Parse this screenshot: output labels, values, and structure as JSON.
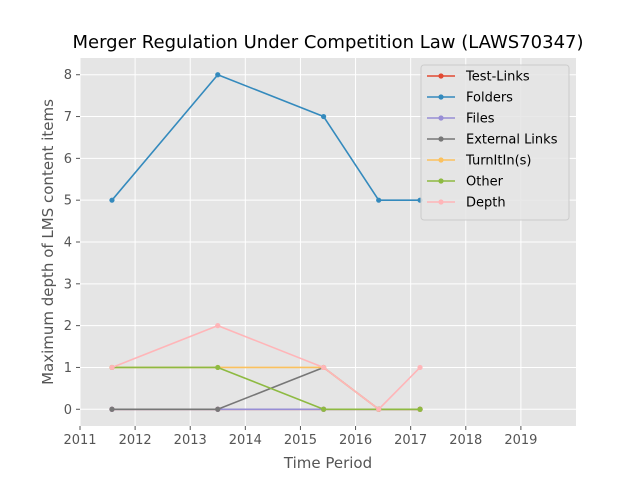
{
  "chart_data": {
    "type": "line",
    "title": "Merger Regulation Under Competition Law (LAWS70347)",
    "xlabel": "Time Period",
    "ylabel": "Maximum depth of LMS content items",
    "xlim": [
      2011,
      2020
    ],
    "ylim": [
      -0.4,
      8.4
    ],
    "xticks": [
      2011,
      2012,
      2013,
      2014,
      2015,
      2016,
      2017,
      2018,
      2019
    ],
    "yticks": [
      0,
      1,
      2,
      3,
      4,
      5,
      6,
      7,
      8
    ],
    "grid": true,
    "legend_position": "top-right",
    "x": [
      2011.58,
      2013.5,
      2015.42,
      2016.42,
      2017.17
    ],
    "series": [
      {
        "name": "Test-Links",
        "color": "#E24A33",
        "values": [
          0,
          0,
          0,
          0,
          0
        ]
      },
      {
        "name": "Folders",
        "color": "#348ABD",
        "values": [
          5,
          8,
          7,
          5,
          5
        ]
      },
      {
        "name": "Files",
        "color": "#988ED5",
        "values": [
          0,
          0,
          0,
          0,
          0
        ]
      },
      {
        "name": "External Links",
        "color": "#777777",
        "values": [
          0,
          0,
          1,
          0,
          0
        ]
      },
      {
        "name": "TurnItIn(s)",
        "color": "#FBC15E",
        "values": [
          1,
          1,
          1,
          0,
          0
        ]
      },
      {
        "name": "Other",
        "color": "#8EBA42",
        "values": [
          1,
          1,
          0,
          0,
          0
        ]
      },
      {
        "name": "Depth",
        "color": "#FFB5B8",
        "values": [
          1,
          2,
          1,
          0,
          1
        ]
      }
    ]
  }
}
